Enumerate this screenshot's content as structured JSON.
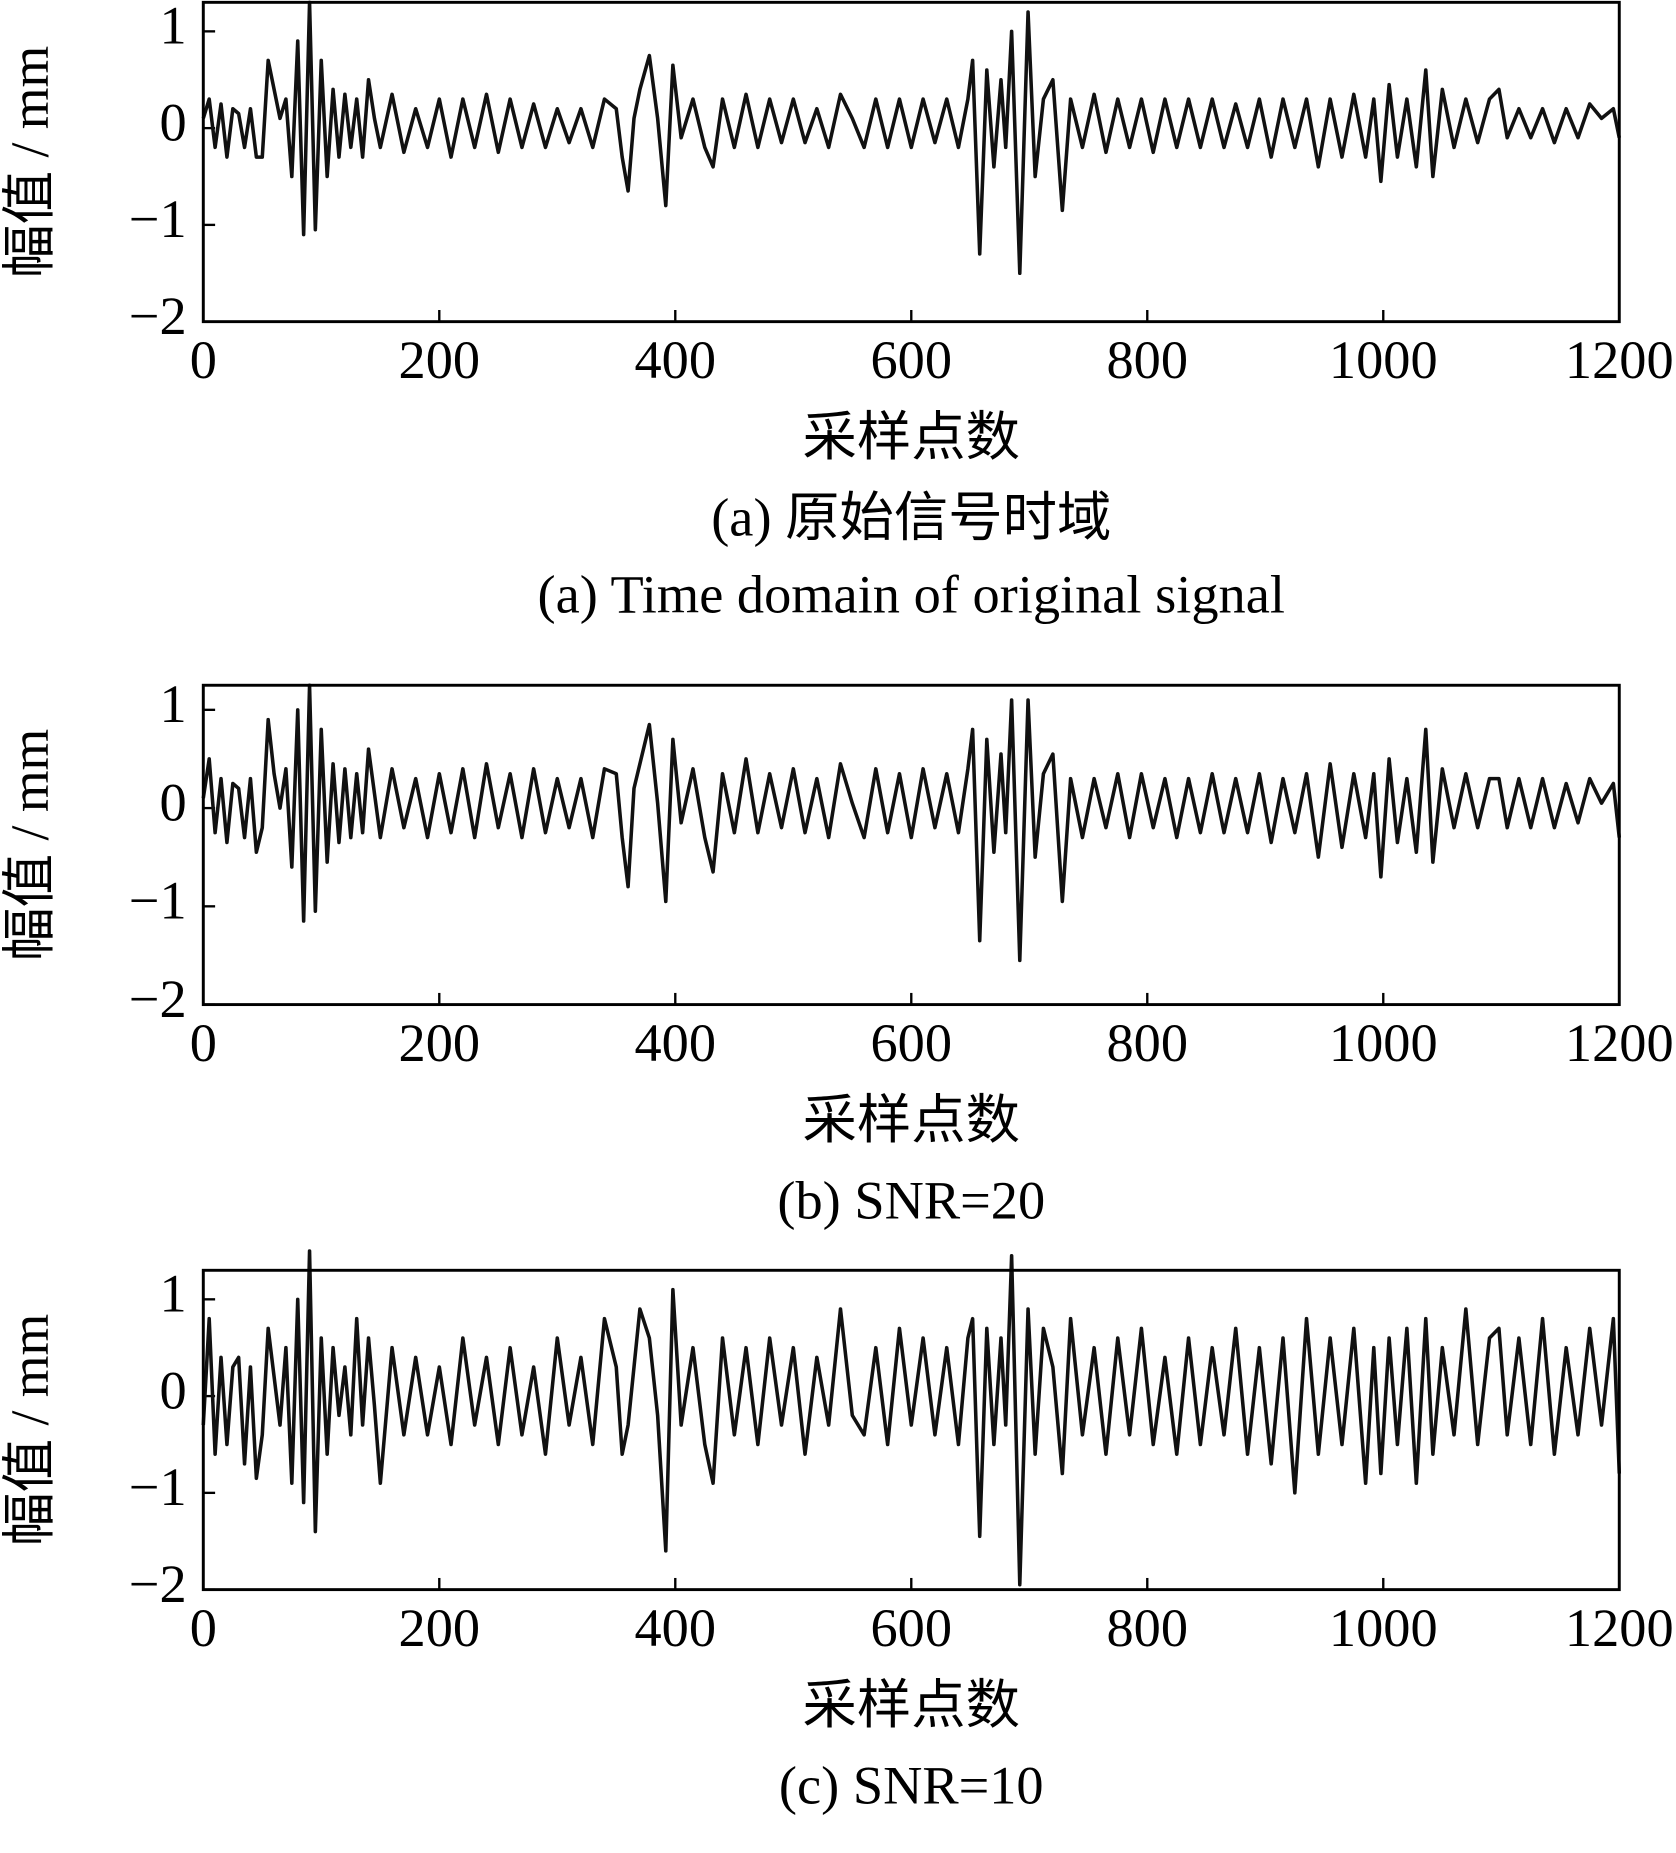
{
  "chart_data": [
    {
      "type": "line",
      "ylabel": "幅值 / mm",
      "xlabel": "采样点数",
      "captions": [
        "(a) 原始信号时域",
        "(a) Time domain of original signal"
      ],
      "xlim": [
        0,
        1200
      ],
      "xticks": [
        0,
        200,
        400,
        600,
        800,
        1000,
        1200
      ],
      "ylim": [
        -2,
        1.3
      ],
      "yticks": [
        {
          "value": -2,
          "label": "−2"
        },
        {
          "value": -1,
          "label": "−1"
        },
        0,
        1
      ],
      "x": [
        0,
        5,
        10,
        15,
        20,
        25,
        30,
        35,
        40,
        45,
        50,
        55,
        60,
        65,
        70,
        75,
        80,
        85,
        90,
        95,
        100,
        105,
        110,
        115,
        120,
        125,
        130,
        135,
        140,
        145,
        150,
        160,
        170,
        180,
        190,
        200,
        210,
        220,
        230,
        240,
        250,
        260,
        270,
        280,
        290,
        300,
        310,
        320,
        330,
        340,
        350,
        355,
        360,
        365,
        370,
        378,
        385,
        392,
        398,
        405,
        415,
        425,
        432,
        440,
        450,
        460,
        470,
        480,
        490,
        500,
        510,
        520,
        530,
        540,
        550,
        560,
        570,
        580,
        590,
        600,
        610,
        620,
        630,
        640,
        648,
        652,
        658,
        664,
        670,
        676,
        680,
        685,
        692,
        699,
        705,
        712,
        720,
        728,
        735,
        745,
        755,
        765,
        775,
        785,
        795,
        805,
        815,
        825,
        835,
        845,
        855,
        865,
        875,
        885,
        895,
        905,
        915,
        925,
        935,
        945,
        955,
        965,
        975,
        985,
        992,
        998,
        1005,
        1012,
        1020,
        1028,
        1036,
        1042,
        1050,
        1060,
        1070,
        1080,
        1090,
        1098,
        1105,
        1115,
        1125,
        1135,
        1145,
        1155,
        1165,
        1175,
        1185,
        1195,
        1200
      ],
      "series": [
        {
          "color": "#111111",
          "values": [
            0.1,
            0.3,
            -0.2,
            0.25,
            -0.3,
            0.2,
            0.15,
            -0.2,
            0.2,
            -0.3,
            -0.3,
            0.7,
            0.4,
            0.1,
            0.3,
            -0.5,
            0.9,
            -1.1,
            1.3,
            -1.05,
            0.7,
            -0.5,
            0.4,
            -0.3,
            0.35,
            -0.2,
            0.3,
            -0.3,
            0.5,
            0.1,
            -0.2,
            0.35,
            -0.25,
            0.2,
            -0.2,
            0.3,
            -0.3,
            0.3,
            -0.2,
            0.35,
            -0.25,
            0.3,
            -0.2,
            0.25,
            -0.2,
            0.2,
            -0.15,
            0.2,
            -0.2,
            0.3,
            0.2,
            -0.3,
            -0.65,
            0.1,
            0.4,
            0.75,
            0.1,
            -0.8,
            0.65,
            -0.1,
            0.3,
            -0.2,
            -0.4,
            0.3,
            -0.2,
            0.35,
            -0.2,
            0.3,
            -0.15,
            0.3,
            -0.15,
            0.2,
            -0.2,
            0.35,
            0.1,
            -0.2,
            0.3,
            -0.2,
            0.3,
            -0.2,
            0.3,
            -0.15,
            0.3,
            -0.2,
            0.3,
            0.7,
            -1.3,
            0.6,
            -0.4,
            0.5,
            -0.2,
            1.0,
            -1.5,
            1.2,
            -0.5,
            0.3,
            0.5,
            -0.85,
            0.3,
            -0.2,
            0.35,
            -0.25,
            0.3,
            -0.2,
            0.3,
            -0.25,
            0.3,
            -0.2,
            0.3,
            -0.2,
            0.3,
            -0.2,
            0.25,
            -0.2,
            0.3,
            -0.3,
            0.3,
            -0.2,
            0.3,
            -0.4,
            0.3,
            -0.3,
            0.35,
            -0.3,
            0.3,
            -0.55,
            0.45,
            -0.3,
            0.3,
            -0.4,
            0.6,
            -0.5,
            0.4,
            -0.2,
            0.3,
            -0.15,
            0.3,
            0.4,
            -0.1,
            0.2,
            -0.1,
            0.2,
            -0.15,
            0.2,
            -0.1,
            0.25,
            0.1,
            0.2,
            -0.1
          ]
        }
      ]
    },
    {
      "type": "line",
      "ylabel": "幅值 / mm",
      "xlabel": "采样点数",
      "captions": [
        "(b) SNR=20"
      ],
      "xlim": [
        0,
        1200
      ],
      "xticks": [
        0,
        200,
        400,
        600,
        800,
        1000,
        1200
      ],
      "ylim": [
        -2,
        1.25
      ],
      "yticks": [
        {
          "value": -2,
          "label": "−2"
        },
        {
          "value": -1,
          "label": "−1"
        },
        0,
        1
      ],
      "x": [
        0,
        5,
        10,
        15,
        20,
        25,
        30,
        35,
        40,
        45,
        50,
        55,
        60,
        65,
        70,
        75,
        80,
        85,
        90,
        95,
        100,
        105,
        110,
        115,
        120,
        125,
        130,
        135,
        140,
        145,
        150,
        160,
        170,
        180,
        190,
        200,
        210,
        220,
        230,
        240,
        250,
        260,
        270,
        280,
        290,
        300,
        310,
        320,
        330,
        340,
        350,
        355,
        360,
        365,
        370,
        378,
        385,
        392,
        398,
        405,
        415,
        425,
        432,
        440,
        450,
        460,
        470,
        480,
        490,
        500,
        510,
        520,
        530,
        540,
        550,
        560,
        570,
        580,
        590,
        600,
        610,
        620,
        630,
        640,
        648,
        652,
        658,
        664,
        670,
        676,
        680,
        685,
        692,
        699,
        705,
        712,
        720,
        728,
        735,
        745,
        755,
        765,
        775,
        785,
        795,
        805,
        815,
        825,
        835,
        845,
        855,
        865,
        875,
        885,
        895,
        905,
        915,
        925,
        935,
        945,
        955,
        965,
        975,
        985,
        992,
        998,
        1005,
        1012,
        1020,
        1028,
        1036,
        1042,
        1050,
        1060,
        1070,
        1080,
        1090,
        1098,
        1105,
        1115,
        1125,
        1135,
        1145,
        1155,
        1165,
        1175,
        1185,
        1195,
        1200
      ],
      "series": [
        {
          "color": "#111111",
          "values": [
            0.1,
            0.5,
            -0.25,
            0.3,
            -0.35,
            0.25,
            0.2,
            -0.3,
            0.3,
            -0.45,
            -0.2,
            0.9,
            0.35,
            0.0,
            0.4,
            -0.6,
            1.0,
            -1.15,
            1.25,
            -1.05,
            0.8,
            -0.55,
            0.45,
            -0.35,
            0.4,
            -0.3,
            0.35,
            -0.25,
            0.6,
            0.15,
            -0.3,
            0.4,
            -0.2,
            0.3,
            -0.3,
            0.35,
            -0.25,
            0.4,
            -0.3,
            0.45,
            -0.2,
            0.35,
            -0.3,
            0.4,
            -0.25,
            0.3,
            -0.2,
            0.3,
            -0.3,
            0.4,
            0.35,
            -0.3,
            -0.8,
            0.2,
            0.45,
            0.85,
            0.05,
            -0.95,
            0.7,
            -0.15,
            0.4,
            -0.3,
            -0.65,
            0.35,
            -0.25,
            0.5,
            -0.25,
            0.35,
            -0.2,
            0.4,
            -0.25,
            0.3,
            -0.3,
            0.45,
            0.05,
            -0.3,
            0.4,
            -0.25,
            0.35,
            -0.3,
            0.4,
            -0.2,
            0.35,
            -0.25,
            0.4,
            0.8,
            -1.35,
            0.7,
            -0.45,
            0.55,
            -0.25,
            1.1,
            -1.55,
            1.1,
            -0.5,
            0.35,
            0.55,
            -0.95,
            0.3,
            -0.3,
            0.3,
            -0.2,
            0.35,
            -0.3,
            0.35,
            -0.2,
            0.3,
            -0.3,
            0.3,
            -0.25,
            0.35,
            -0.25,
            0.3,
            -0.25,
            0.35,
            -0.35,
            0.3,
            -0.25,
            0.35,
            -0.5,
            0.45,
            -0.4,
            0.35,
            -0.3,
            0.35,
            -0.7,
            0.5,
            -0.35,
            0.3,
            -0.45,
            0.8,
            -0.55,
            0.4,
            -0.2,
            0.35,
            -0.2,
            0.3,
            0.3,
            -0.2,
            0.3,
            -0.2,
            0.3,
            -0.2,
            0.25,
            -0.15,
            0.3,
            0.05,
            0.25,
            -0.3
          ]
        }
      ]
    },
    {
      "type": "line",
      "ylabel": "幅值 / mm",
      "xlabel": "采样点数",
      "captions": [
        "(c) SNR=10"
      ],
      "xlim": [
        0,
        1200
      ],
      "xticks": [
        0,
        200,
        400,
        600,
        800,
        1000,
        1200
      ],
      "ylim": [
        -2,
        1.3
      ],
      "yticks": [
        {
          "value": -2,
          "label": "−2"
        },
        {
          "value": -1,
          "label": "−1"
        },
        0,
        1
      ],
      "x": [
        0,
        5,
        10,
        15,
        20,
        25,
        30,
        35,
        40,
        45,
        50,
        55,
        60,
        65,
        70,
        75,
        80,
        85,
        90,
        95,
        100,
        105,
        110,
        115,
        120,
        125,
        130,
        135,
        140,
        145,
        150,
        160,
        170,
        180,
        190,
        200,
        210,
        220,
        230,
        240,
        250,
        260,
        270,
        280,
        290,
        300,
        310,
        320,
        330,
        340,
        350,
        355,
        360,
        365,
        370,
        378,
        385,
        392,
        398,
        405,
        415,
        425,
        432,
        440,
        450,
        460,
        470,
        480,
        490,
        500,
        510,
        520,
        530,
        540,
        550,
        560,
        570,
        580,
        590,
        600,
        610,
        620,
        630,
        640,
        648,
        652,
        658,
        664,
        670,
        676,
        680,
        685,
        692,
        699,
        705,
        712,
        720,
        728,
        735,
        745,
        755,
        765,
        775,
        785,
        795,
        805,
        815,
        825,
        835,
        845,
        855,
        865,
        875,
        885,
        895,
        905,
        915,
        925,
        935,
        945,
        955,
        965,
        975,
        985,
        992,
        998,
        1005,
        1012,
        1020,
        1028,
        1036,
        1042,
        1050,
        1060,
        1070,
        1080,
        1090,
        1098,
        1105,
        1115,
        1125,
        1135,
        1145,
        1155,
        1165,
        1175,
        1185,
        1195,
        1200
      ],
      "series": [
        {
          "color": "#111111",
          "values": [
            -0.3,
            0.8,
            -0.6,
            0.4,
            -0.5,
            0.3,
            0.4,
            -0.7,
            0.3,
            -0.85,
            -0.4,
            0.7,
            0.2,
            -0.3,
            0.5,
            -0.9,
            1.0,
            -1.1,
            1.5,
            -1.4,
            0.6,
            -0.6,
            0.5,
            -0.2,
            0.3,
            -0.4,
            0.8,
            -0.3,
            0.6,
            -0.1,
            -0.9,
            0.5,
            -0.4,
            0.4,
            -0.4,
            0.3,
            -0.5,
            0.6,
            -0.3,
            0.4,
            -0.5,
            0.5,
            -0.4,
            0.3,
            -0.6,
            0.6,
            -0.3,
            0.4,
            -0.5,
            0.8,
            0.3,
            -0.6,
            -0.3,
            0.3,
            0.9,
            0.6,
            -0.2,
            -1.6,
            1.1,
            -0.3,
            0.5,
            -0.5,
            -0.9,
            0.6,
            -0.4,
            0.5,
            -0.5,
            0.6,
            -0.3,
            0.5,
            -0.6,
            0.4,
            -0.3,
            0.9,
            -0.2,
            -0.4,
            0.5,
            -0.5,
            0.7,
            -0.3,
            0.6,
            -0.4,
            0.5,
            -0.5,
            0.6,
            0.8,
            -1.45,
            0.7,
            -0.5,
            0.6,
            -0.3,
            1.45,
            -1.95,
            0.9,
            -0.6,
            0.7,
            0.3,
            -0.8,
            0.8,
            -0.4,
            0.5,
            -0.6,
            0.6,
            -0.4,
            0.7,
            -0.5,
            0.4,
            -0.6,
            0.6,
            -0.5,
            0.5,
            -0.4,
            0.7,
            -0.6,
            0.5,
            -0.7,
            0.6,
            -1.0,
            0.8,
            -0.6,
            0.6,
            -0.5,
            0.7,
            -0.9,
            0.5,
            -0.8,
            0.6,
            -0.5,
            0.7,
            -0.9,
            0.8,
            -0.6,
            0.5,
            -0.4,
            0.9,
            -0.5,
            0.6,
            0.7,
            -0.4,
            0.6,
            -0.5,
            0.8,
            -0.6,
            0.5,
            -0.4,
            0.7,
            -0.3,
            0.8,
            -0.8
          ]
        }
      ]
    }
  ]
}
